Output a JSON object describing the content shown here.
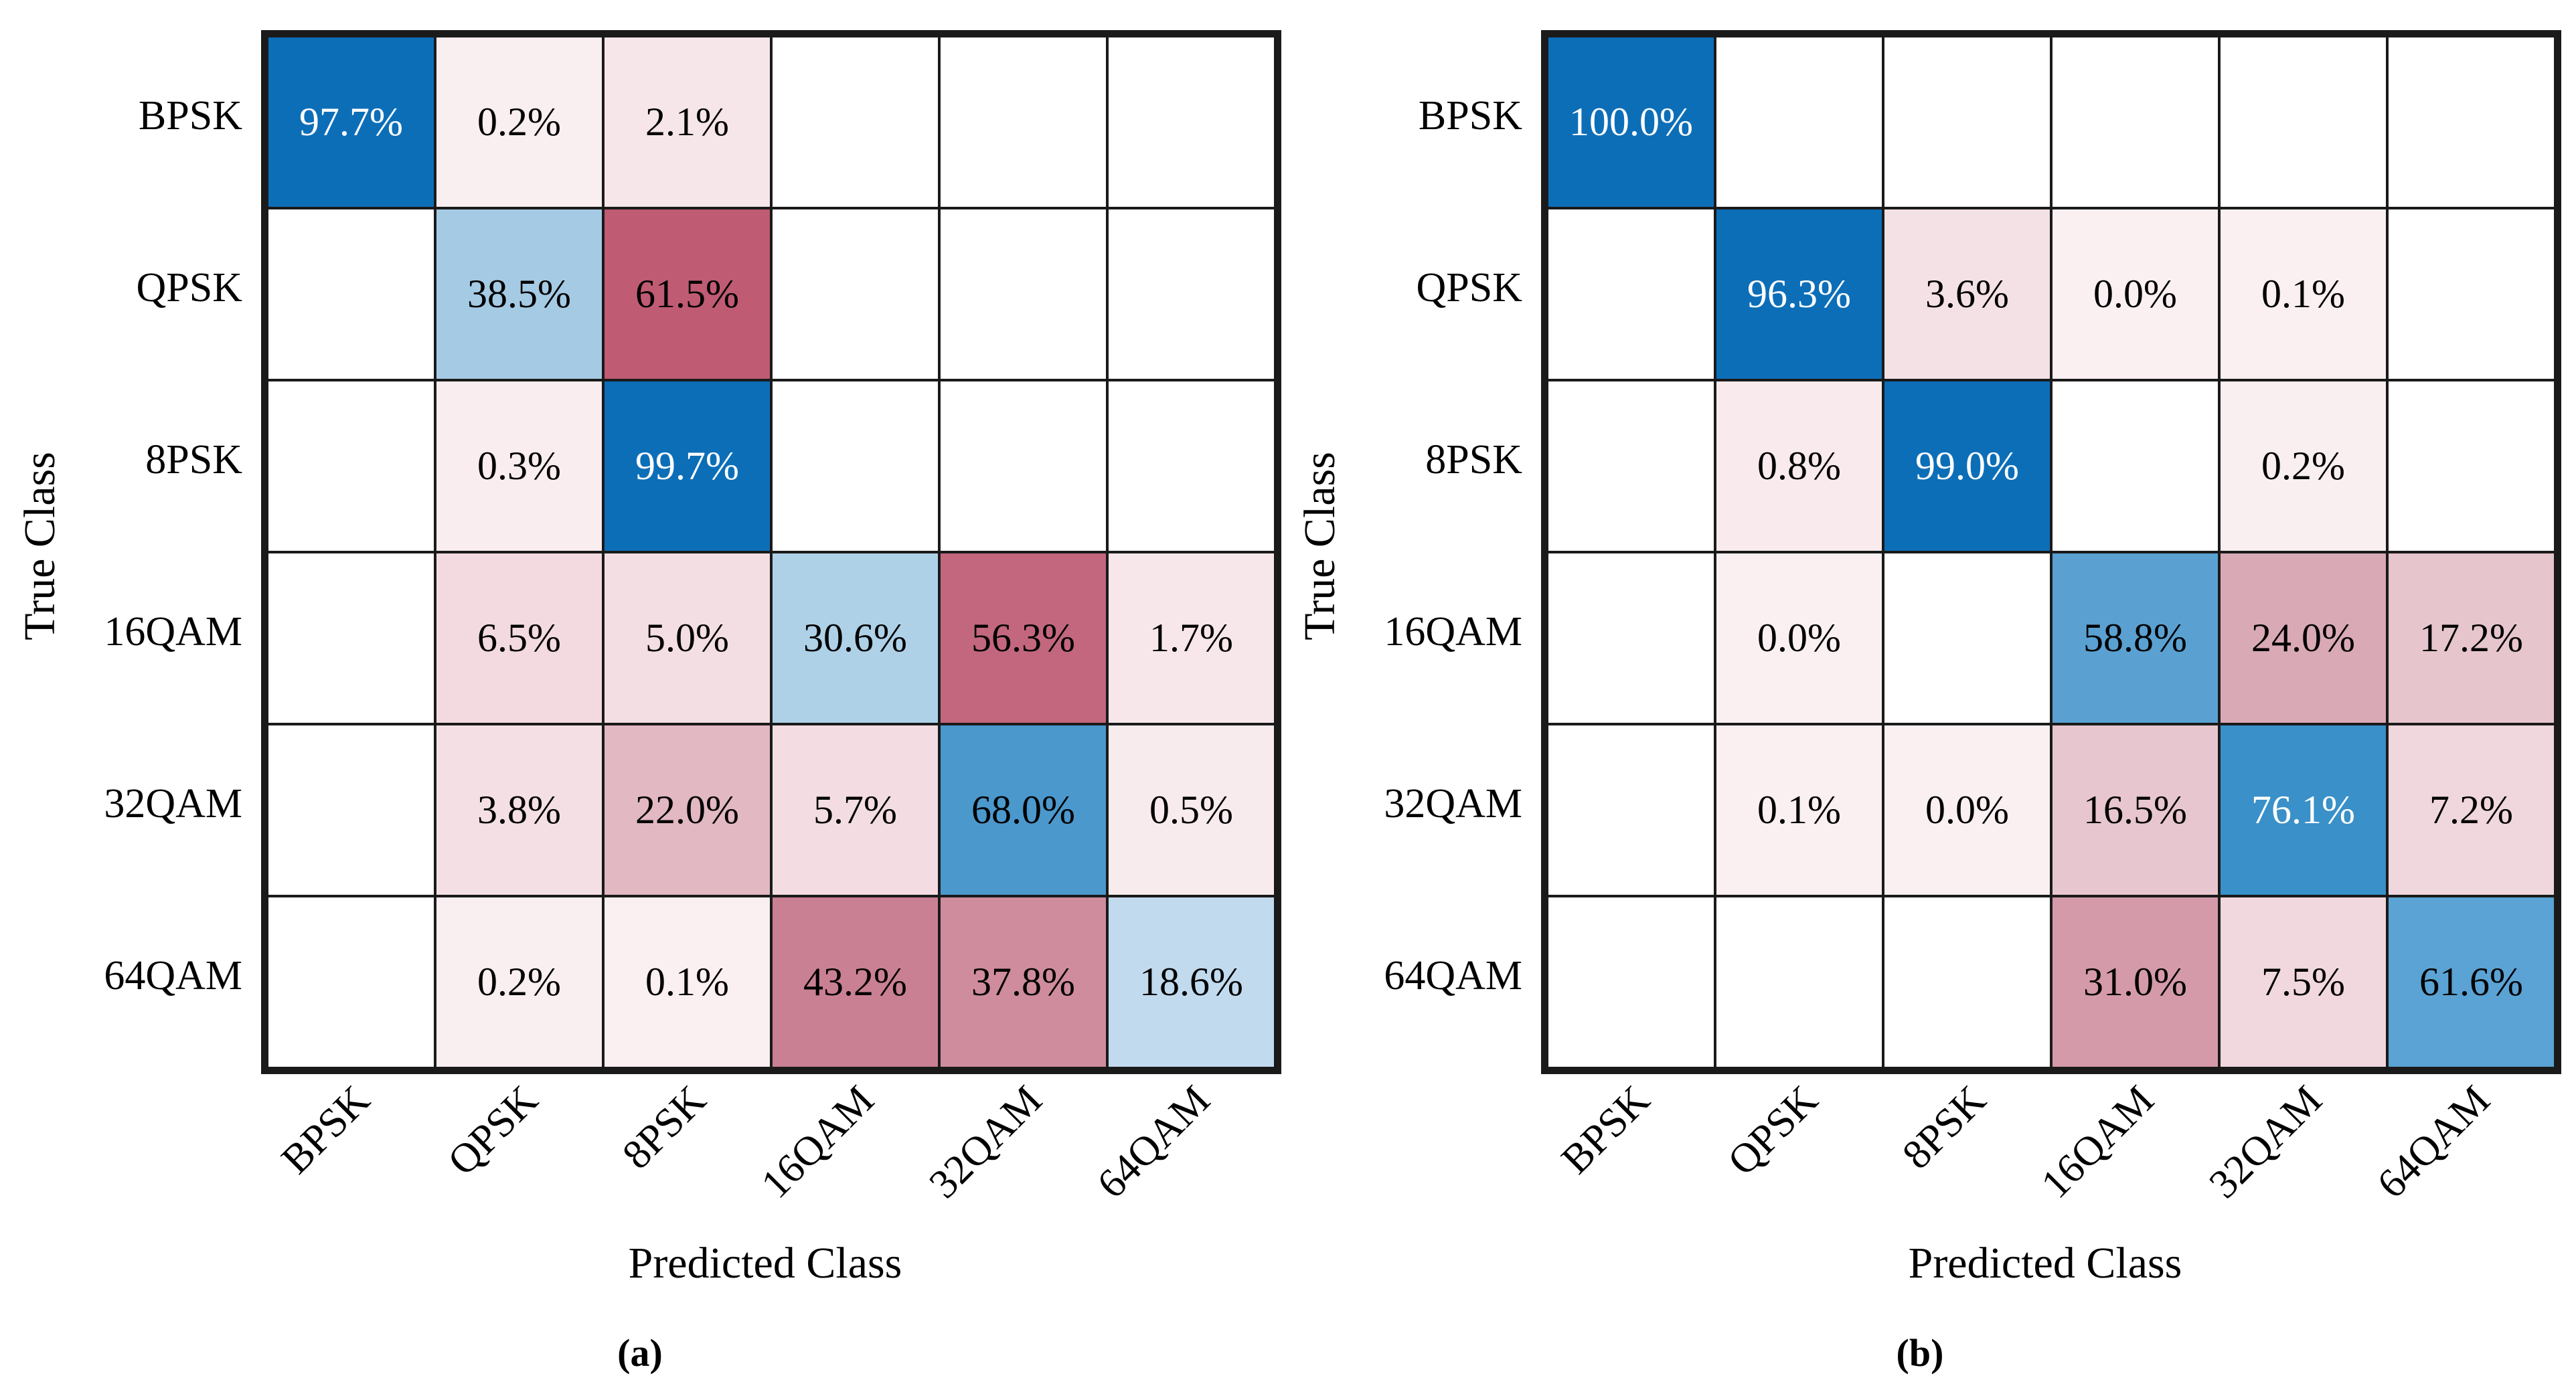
{
  "figure": {
    "type": "confusion-matrix-pair",
    "ylabel": "True Class",
    "xlabel": "Predicted Class",
    "classes": [
      "BPSK",
      "QPSK",
      "8PSK",
      "16QAM",
      "32QAM",
      "64QAM"
    ],
    "border_color": "#1a1a1a",
    "background": "#ffffff",
    "correct_cell_color_max": "#0d6eb8",
    "error_cell_color_max": "#bf5b73",
    "panels": [
      {
        "caption": "(a)",
        "rows": [
          {
            "true_class": "BPSK",
            "cells": [
              {
                "label": "97.7%",
                "bg": "#0d6eb8",
                "fg": "#ffffff"
              },
              {
                "label": "0.2%",
                "bg": "#f9eef0",
                "fg": "#000000"
              },
              {
                "label": "2.1%",
                "bg": "#f6e6e9",
                "fg": "#000000"
              },
              null,
              null,
              null
            ]
          },
          {
            "true_class": "QPSK",
            "cells": [
              null,
              {
                "label": "38.5%",
                "bg": "#a5cae4",
                "fg": "#000000"
              },
              {
                "label": "61.5%",
                "bg": "#bf5b73",
                "fg": "#000000"
              },
              null,
              null,
              null
            ]
          },
          {
            "true_class": "8PSK",
            "cells": [
              null,
              {
                "label": "0.3%",
                "bg": "#f9edef",
                "fg": "#000000"
              },
              {
                "label": "99.7%",
                "bg": "#0d6eb8",
                "fg": "#ffffff"
              },
              null,
              null,
              null
            ]
          },
          {
            "true_class": "16QAM",
            "cells": [
              null,
              {
                "label": "6.5%",
                "bg": "#f2dae0",
                "fg": "#000000"
              },
              {
                "label": "5.0%",
                "bg": "#f3dee3",
                "fg": "#000000"
              },
              {
                "label": "30.6%",
                "bg": "#aed1e8",
                "fg": "#000000"
              },
              {
                "label": "56.3%",
                "bg": "#c2677e",
                "fg": "#000000"
              },
              {
                "label": "1.7%",
                "bg": "#f7e7ea",
                "fg": "#000000"
              }
            ]
          },
          {
            "true_class": "32QAM",
            "cells": [
              null,
              {
                "label": "3.8%",
                "bg": "#f4e0e4",
                "fg": "#000000"
              },
              {
                "label": "22.0%",
                "bg": "#e2b8c3",
                "fg": "#000000"
              },
              {
                "label": "5.7%",
                "bg": "#f3dde2",
                "fg": "#000000"
              },
              {
                "label": "68.0%",
                "bg": "#4b98cd",
                "fg": "#000000"
              },
              {
                "label": "0.5%",
                "bg": "#f8ebee",
                "fg": "#000000"
              }
            ]
          },
          {
            "true_class": "64QAM",
            "cells": [
              null,
              {
                "label": "0.2%",
                "bg": "#f9eef0",
                "fg": "#000000"
              },
              {
                "label": "0.1%",
                "bg": "#faeff1",
                "fg": "#000000"
              },
              {
                "label": "43.2%",
                "bg": "#ca8093",
                "fg": "#000000"
              },
              {
                "label": "37.8%",
                "bg": "#cf8c9d",
                "fg": "#000000"
              },
              {
                "label": "18.6%",
                "bg": "#c2daee",
                "fg": "#000000"
              }
            ]
          }
        ]
      },
      {
        "caption": "(b)",
        "rows": [
          {
            "true_class": "BPSK",
            "cells": [
              {
                "label": "100.0%",
                "bg": "#0d6eb8",
                "fg": "#ffffff"
              },
              null,
              null,
              null,
              null,
              null
            ]
          },
          {
            "true_class": "QPSK",
            "cells": [
              null,
              {
                "label": "96.3%",
                "bg": "#0d6eb8",
                "fg": "#ffffff"
              },
              {
                "label": "3.6%",
                "bg": "#f4e1e5",
                "fg": "#000000"
              },
              {
                "label": "0.0%",
                "bg": "#faf0f2",
                "fg": "#000000"
              },
              {
                "label": "0.1%",
                "bg": "#faeff1",
                "fg": "#000000"
              },
              null
            ]
          },
          {
            "true_class": "8PSK",
            "cells": [
              null,
              {
                "label": "0.8%",
                "bg": "#f8eaed",
                "fg": "#000000"
              },
              {
                "label": "99.0%",
                "bg": "#0d6eb8",
                "fg": "#ffffff"
              },
              null,
              {
                "label": "0.2%",
                "bg": "#f9eef0",
                "fg": "#000000"
              },
              null
            ]
          },
          {
            "true_class": "16QAM",
            "cells": [
              null,
              {
                "label": "0.0%",
                "bg": "#faf0f2",
                "fg": "#000000"
              },
              null,
              {
                "label": "58.8%",
                "bg": "#5aa1d2",
                "fg": "#000000"
              },
              {
                "label": "24.0%",
                "bg": "#d9a9b6",
                "fg": "#000000"
              },
              {
                "label": "17.2%",
                "bg": "#e6c5cd",
                "fg": "#000000"
              }
            ]
          },
          {
            "true_class": "32QAM",
            "cells": [
              null,
              {
                "label": "0.1%",
                "bg": "#faeff1",
                "fg": "#000000"
              },
              {
                "label": "0.0%",
                "bg": "#faf0f2",
                "fg": "#000000"
              },
              {
                "label": "16.5%",
                "bg": "#e7c6cf",
                "fg": "#000000"
              },
              {
                "label": "76.1%",
                "bg": "#3a90c8",
                "fg": "#ffffff"
              },
              {
                "label": "7.2%",
                "bg": "#f0d7dd",
                "fg": "#000000"
              }
            ]
          },
          {
            "true_class": "64QAM",
            "cells": [
              null,
              null,
              null,
              {
                "label": "31.0%",
                "bg": "#d49aa9",
                "fg": "#000000"
              },
              {
                "label": "7.5%",
                "bg": "#f0d8de",
                "fg": "#000000"
              },
              {
                "label": "61.6%",
                "bg": "#5aa3d4",
                "fg": "#000000"
              }
            ]
          }
        ]
      }
    ]
  },
  "chart_data": [
    {
      "type": "heatmap",
      "title": "(a)",
      "xlabel": "Predicted Class",
      "ylabel": "True Class",
      "x_categories": [
        "BPSK",
        "QPSK",
        "8PSK",
        "16QAM",
        "32QAM",
        "64QAM"
      ],
      "y_categories": [
        "BPSK",
        "QPSK",
        "8PSK",
        "16QAM",
        "32QAM",
        "64QAM"
      ],
      "values_percent": [
        [
          97.7,
          0.2,
          2.1,
          null,
          null,
          null
        ],
        [
          null,
          38.5,
          61.5,
          null,
          null,
          null
        ],
        [
          null,
          0.3,
          99.7,
          null,
          null,
          null
        ],
        [
          null,
          6.5,
          5.0,
          30.6,
          56.3,
          1.7
        ],
        [
          null,
          3.8,
          22.0,
          5.7,
          68.0,
          0.5
        ],
        [
          null,
          0.2,
          0.1,
          43.2,
          37.8,
          18.6
        ]
      ],
      "color_scheme": "diagonal (correct) cells shaded blue by value, off-diagonal (error) cells shaded red-rose by value, blank cells white",
      "grid": true,
      "legend": false
    },
    {
      "type": "heatmap",
      "title": "(b)",
      "xlabel": "Predicted Class",
      "ylabel": "True Class",
      "x_categories": [
        "BPSK",
        "QPSK",
        "8PSK",
        "16QAM",
        "32QAM",
        "64QAM"
      ],
      "y_categories": [
        "BPSK",
        "QPSK",
        "8PSK",
        "16QAM",
        "32QAM",
        "64QAM"
      ],
      "values_percent": [
        [
          100.0,
          null,
          null,
          null,
          null,
          null
        ],
        [
          null,
          96.3,
          3.6,
          0.0,
          0.1,
          null
        ],
        [
          null,
          0.8,
          99.0,
          null,
          0.2,
          null
        ],
        [
          null,
          0.0,
          null,
          58.8,
          24.0,
          17.2
        ],
        [
          null,
          0.1,
          0.0,
          16.5,
          76.1,
          7.2
        ],
        [
          null,
          null,
          null,
          31.0,
          7.5,
          61.6
        ]
      ],
      "color_scheme": "diagonal (correct) cells shaded blue by value, off-diagonal (error) cells shaded red-rose by value, blank cells white",
      "grid": true,
      "legend": false
    }
  ]
}
